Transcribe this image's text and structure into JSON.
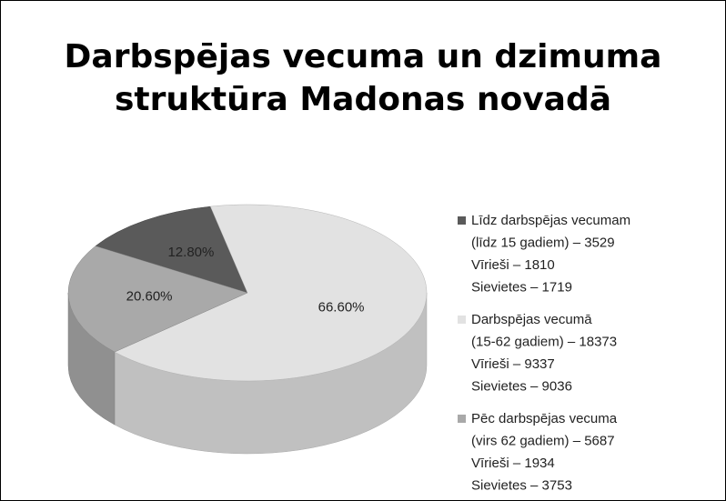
{
  "chart_data": {
    "type": "pie3d",
    "title": [
      "Darbspējas vecuma un dzimuma",
      "struktūra Madonas novadā"
    ],
    "categories": [
      [
        "Līdz darbspējas vecumam",
        "(līdz 15 gadiem) – 3529",
        "Vīrieši – 1810",
        "Sievietes – 1719"
      ],
      [
        "Darbspējas vecumā",
        "(15-62 gadiem) – 18373",
        "Vīrieši – 9337",
        "Sievietes – 9036"
      ],
      [
        "Pēc darbspējas vecuma",
        "(virs 62 gadiem) – 5687",
        "Vīrieši – 1934",
        "Sievietes – 3753"
      ]
    ],
    "values": [
      12.8,
      66.6,
      20.6
    ],
    "value_labels": [
      "12.80%",
      "66.60%",
      "20.60%"
    ],
    "colors": [
      "#5a5a5a",
      "#e2e2e2",
      "#a9a9a9"
    ],
    "legend": "right"
  }
}
